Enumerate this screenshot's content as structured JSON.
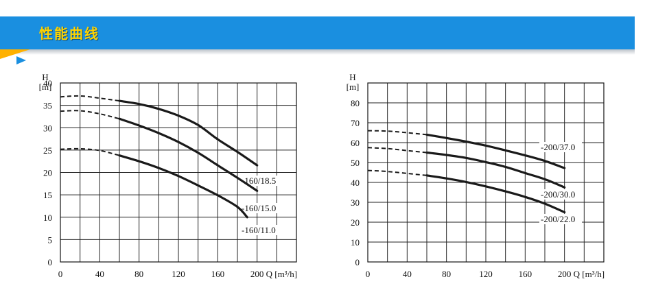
{
  "header": {
    "title": "性能曲线",
    "accent_color": "#1a8fe0",
    "title_color": "#ffd400",
    "tab_color": "#ffb100"
  },
  "chart_data": [
    {
      "type": "line",
      "ylabel": "H",
      "ylabel_unit": "[m]",
      "xlabel": "Q [m³/h]",
      "xlim": [
        0,
        240
      ],
      "ylim": [
        0,
        40
      ],
      "xticks": [
        0,
        40,
        80,
        120,
        160,
        200
      ],
      "yticks": [
        0,
        5,
        10,
        15,
        20,
        25,
        30,
        35,
        40
      ],
      "grid": true,
      "series": [
        {
          "name": "-160/18.5",
          "dashed": [
            [
              0,
              36.9
            ],
            [
              20,
              37.1
            ],
            [
              40,
              36.6
            ],
            [
              60,
              36.0
            ]
          ],
          "solid": [
            [
              60,
              36.0
            ],
            [
              80,
              35.3
            ],
            [
              100,
              34.2
            ],
            [
              120,
              32.7
            ],
            [
              140,
              30.6
            ],
            [
              160,
              27.4
            ],
            [
              180,
              24.6
            ],
            [
              200,
              21.6
            ]
          ]
        },
        {
          "name": "-160/15.0",
          "dashed": [
            [
              0,
              33.7
            ],
            [
              20,
              33.8
            ],
            [
              40,
              33.1
            ],
            [
              60,
              32.0
            ]
          ],
          "solid": [
            [
              60,
              32.0
            ],
            [
              80,
              30.5
            ],
            [
              100,
              28.8
            ],
            [
              120,
              26.8
            ],
            [
              140,
              24.4
            ],
            [
              160,
              21.6
            ],
            [
              180,
              18.8
            ],
            [
              200,
              15.9
            ]
          ]
        },
        {
          "name": "-160/11.0",
          "dashed": [
            [
              0,
              25.2
            ],
            [
              20,
              25.3
            ],
            [
              40,
              24.9
            ],
            [
              60,
              23.8
            ]
          ],
          "solid": [
            [
              60,
              23.8
            ],
            [
              80,
              22.5
            ],
            [
              100,
              21.0
            ],
            [
              120,
              19.2
            ],
            [
              140,
              17.1
            ],
            [
              160,
              14.9
            ],
            [
              180,
              12.3
            ],
            [
              190,
              10.0
            ]
          ]
        }
      ]
    },
    {
      "type": "line",
      "ylabel": "H",
      "ylabel_unit": "[m]",
      "xlabel": "Q [m³/h]",
      "xlim": [
        0,
        240
      ],
      "ylim": [
        0,
        90
      ],
      "xticks": [
        0,
        40,
        80,
        120,
        160,
        200
      ],
      "yticks": [
        0,
        10,
        20,
        30,
        40,
        50,
        60,
        70,
        80
      ],
      "grid": true,
      "series": [
        {
          "name": "-200/37.0",
          "dashed": [
            [
              0,
              66.0
            ],
            [
              20,
              65.8
            ],
            [
              40,
              65.0
            ],
            [
              60,
              64.0
            ]
          ],
          "solid": [
            [
              60,
              64.0
            ],
            [
              80,
              62.3
            ],
            [
              100,
              60.5
            ],
            [
              120,
              58.5
            ],
            [
              140,
              56.1
            ],
            [
              160,
              53.6
            ],
            [
              180,
              50.8
            ],
            [
              200,
              47.2
            ]
          ]
        },
        {
          "name": "-200/30.0",
          "dashed": [
            [
              0,
              57.5
            ],
            [
              20,
              57.0
            ],
            [
              40,
              56.0
            ],
            [
              60,
              55.0
            ]
          ],
          "solid": [
            [
              60,
              55.0
            ],
            [
              80,
              53.8
            ],
            [
              100,
              52.3
            ],
            [
              120,
              50.2
            ],
            [
              140,
              47.8
            ],
            [
              160,
              44.7
            ],
            [
              180,
              41.6
            ],
            [
              200,
              37.5
            ]
          ]
        },
        {
          "name": "-200/22.0",
          "dashed": [
            [
              0,
              46.0
            ],
            [
              20,
              45.5
            ],
            [
              40,
              44.5
            ],
            [
              60,
              43.5
            ]
          ],
          "solid": [
            [
              60,
              43.5
            ],
            [
              80,
              42.0
            ],
            [
              100,
              40.2
            ],
            [
              120,
              38.0
            ],
            [
              140,
              35.5
            ],
            [
              160,
              32.7
            ],
            [
              180,
              29.3
            ],
            [
              200,
              25.0
            ]
          ]
        }
      ]
    }
  ]
}
